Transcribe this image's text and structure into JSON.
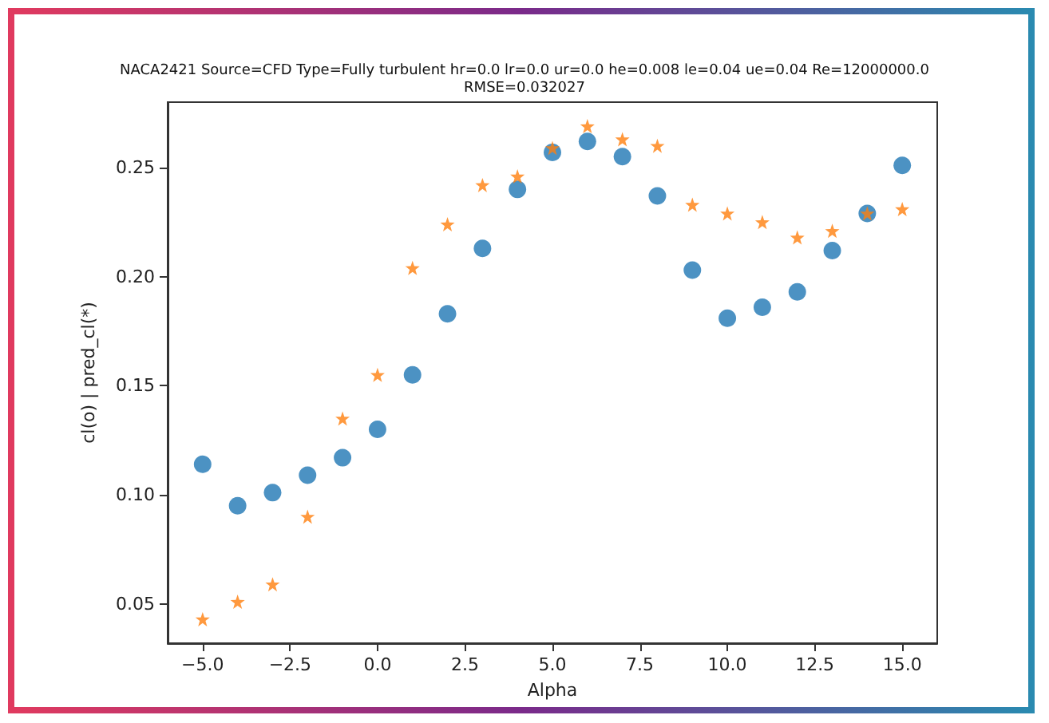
{
  "chart_data": {
    "type": "scatter",
    "title": "NACA2421 Source=CFD Type=Fully turbulent hr=0.0 lr=0.0 ur=0.0 he=0.008 le=0.04 ue=0.04 Re=12000000.0\nRMSE=0.032027",
    "xlabel": "Alpha",
    "ylabel": "cl(o) | pred_cl(*)",
    "x": [
      -5,
      -4,
      -3,
      -2,
      -1,
      0,
      1,
      2,
      3,
      4,
      5,
      6,
      7,
      8,
      9,
      10,
      11,
      12,
      13,
      14,
      15
    ],
    "series": [
      {
        "color": "#1f77b4",
        "marker": "circle",
        "values": [
          0.114,
          0.095,
          0.101,
          0.109,
          0.117,
          0.13,
          0.155,
          0.183,
          0.213,
          0.24,
          0.257,
          0.262,
          0.255,
          0.237,
          0.203,
          0.181,
          0.186,
          0.193,
          0.212,
          0.229,
          0.251
        ]
      },
      {
        "color": "#ff7f0e",
        "marker": "star",
        "values": [
          0.043,
          0.051,
          0.059,
          0.09,
          0.135,
          0.155,
          0.204,
          0.224,
          0.242,
          0.246,
          0.259,
          0.269,
          0.263,
          0.26,
          0.233,
          0.229,
          0.225,
          0.218,
          0.221,
          0.229,
          0.231
        ]
      }
    ],
    "xlim": [
      -6,
      16
    ],
    "xticks": [
      {
        "value": -5,
        "label": "−5.0"
      },
      {
        "value": -2.5,
        "label": "−2.5"
      },
      {
        "value": 0,
        "label": "0.0"
      },
      {
        "value": 2.5,
        "label": "2.5"
      },
      {
        "value": 5,
        "label": "5.0"
      },
      {
        "value": 7.5,
        "label": "7.5"
      },
      {
        "value": 10,
        "label": "10.0"
      },
      {
        "value": 12.5,
        "label": "12.5"
      },
      {
        "value": 15,
        "label": "15.0"
      }
    ],
    "ylim": [
      0.032,
      0.28
    ],
    "yticks": [
      {
        "value": 0.05,
        "label": "0.05"
      },
      {
        "value": 0.1,
        "label": "0.10"
      },
      {
        "value": 0.15,
        "label": "0.15"
      },
      {
        "value": 0.2,
        "label": "0.20"
      },
      {
        "value": 0.25,
        "label": "0.25"
      }
    ],
    "grid": false
  }
}
